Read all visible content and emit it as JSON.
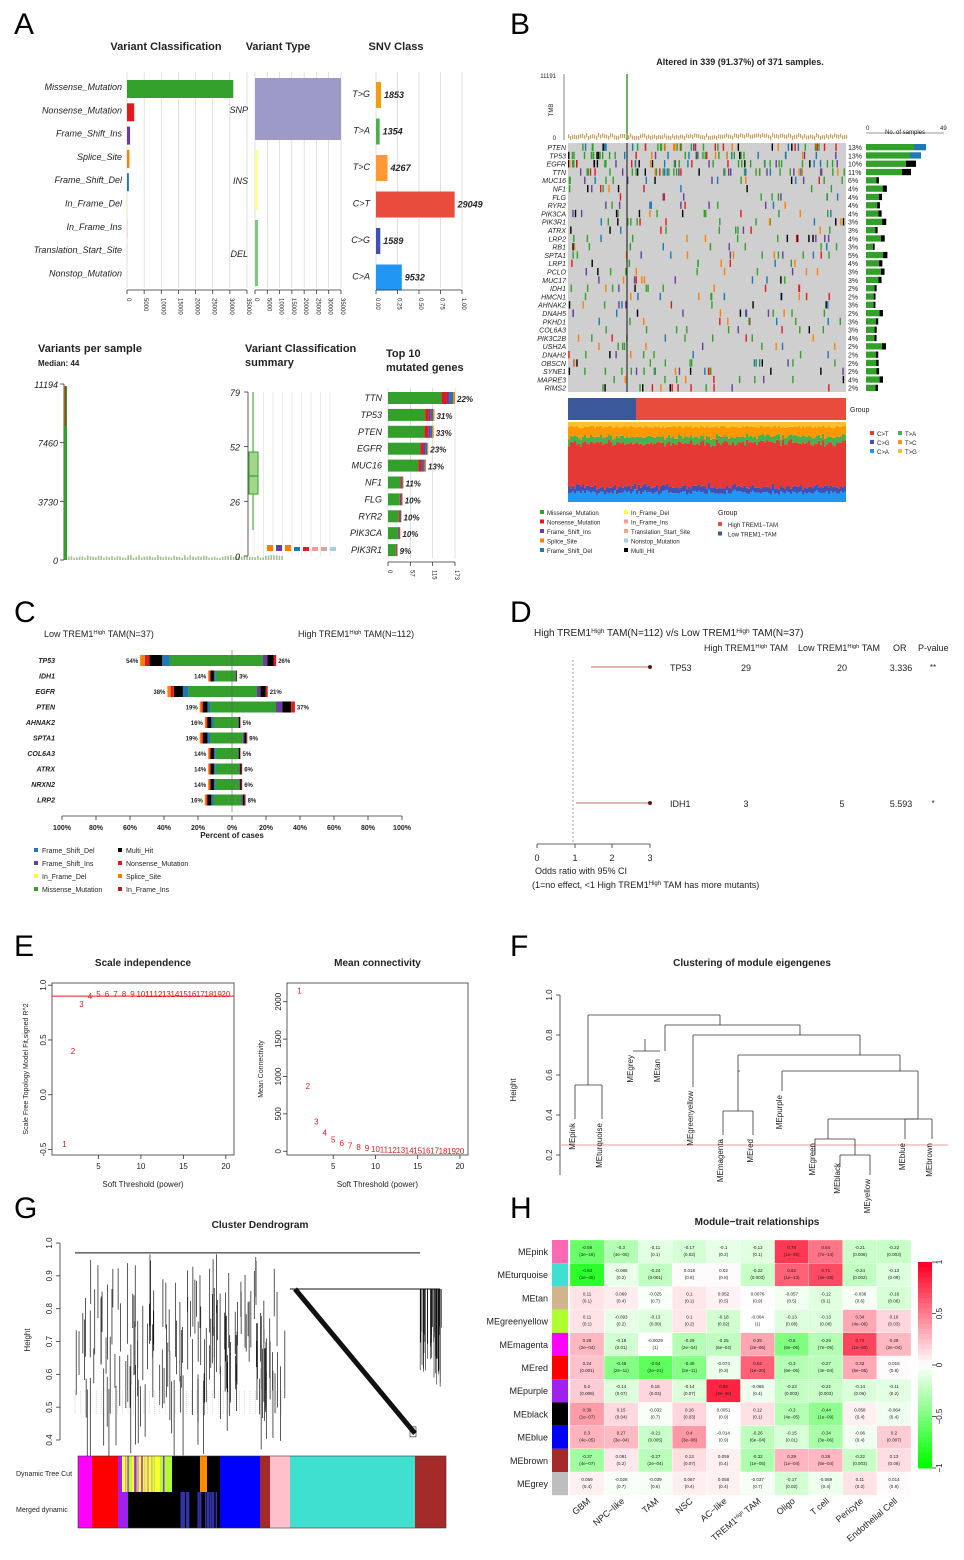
{
  "panels": {
    "A": "A",
    "B": "B",
    "C": "C",
    "D": "D",
    "E": "E",
    "F": "F",
    "G": "G",
    "H": "H"
  },
  "chart_data": [
    {
      "id": "A1",
      "type": "bar",
      "title": "Variant Classification",
      "categories": [
        "Missense_Mutation",
        "Nonsense_Mutation",
        "Frame_Shift_Ins",
        "Splice_Site",
        "Frame_Shift_Del",
        "In_Frame_Del",
        "In_Frame_Ins",
        "Translation_Start_Site",
        "Nonstop_Mutation"
      ],
      "values": [
        31000,
        2100,
        900,
        700,
        550,
        120,
        90,
        40,
        20
      ],
      "colors": [
        "#33a02c",
        "#e31a1c",
        "#6a3d9a",
        "#ff7f00",
        "#1f78b4",
        "#ffff33",
        "#fb9a99",
        "#f4a582",
        "#a6cee3"
      ],
      "xticks": [
        "0",
        "5000",
        "10000",
        "15000",
        "20000",
        "25000",
        "30000",
        "35000"
      ],
      "xlim": [
        0,
        35000
      ]
    },
    {
      "id": "A2",
      "type": "bar",
      "title": "Variant Type",
      "categories": [
        "SNP",
        "INS",
        "DEL"
      ],
      "values": [
        48000,
        300,
        1200
      ],
      "colors": [
        "#9e9ac8",
        "#ffff99",
        "#7fc97f"
      ],
      "xticks": [
        "0",
        "5000",
        "10000",
        "15000",
        "20000",
        "25000",
        "30000",
        "35000"
      ]
    },
    {
      "id": "A3",
      "type": "bar",
      "title": "SNV Class",
      "categories": [
        "T>G",
        "T>A",
        "T>C",
        "C>T",
        "C>G",
        "C>A"
      ],
      "values": [
        1853,
        1354,
        4267,
        29049,
        1589,
        9532
      ],
      "labels": [
        "1853",
        "1354",
        "4267",
        "29049",
        "1589",
        "9532"
      ],
      "colors": [
        "#f39c12",
        "#4daf4a",
        "#ff9933",
        "#e74c3c",
        "#3f51b5",
        "#2196f3"
      ],
      "xticks": [
        "0.00",
        "0.25",
        "0.50",
        "0.75",
        "1.00"
      ]
    },
    {
      "id": "A4",
      "type": "bar",
      "title": "Variants per sample",
      "subtitle": "Median: 44",
      "yticks": [
        "0",
        "3730",
        "7460",
        "11194"
      ],
      "ylim": [
        0,
        11194
      ]
    },
    {
      "id": "A5",
      "type": "box",
      "title": "Variant Classification summary",
      "yticks": [
        "0",
        "26",
        "52",
        "79"
      ]
    },
    {
      "id": "A6",
      "type": "bar",
      "title": "Top 10 mutated genes",
      "categories": [
        "TTN",
        "TP53",
        "PTEN",
        "EGFR",
        "MUC16",
        "NF1",
        "FLG",
        "RYR2",
        "PIK3CA",
        "PIK3R1"
      ],
      "values": [
        173,
        120,
        118,
        104,
        98,
        40,
        38,
        35,
        32,
        25
      ],
      "labels": [
        "22%",
        "31%",
        "33%",
        "23%",
        "13%",
        "11%",
        "10%",
        "10%",
        "10%",
        "9%"
      ],
      "xticks": [
        "0",
        "57",
        "115",
        "173"
      ]
    },
    {
      "id": "B",
      "type": "heatmap",
      "title": "Altered in 339 (91.37%) of 371 samples.",
      "tmb_label": "TMB",
      "tmb_max": "11191",
      "tmb_min": "0",
      "axis_top": [
        "0",
        "No. of samples",
        "49"
      ],
      "genes": [
        "PTEN",
        "TP53",
        "EGFR",
        "TTN",
        "MUC16",
        "NF1",
        "FLG",
        "RYR2",
        "PIK3CA",
        "PIK3R1",
        "ATRX",
        "LRP2",
        "RB1",
        "SPTA1",
        "LRP1",
        "PCLO",
        "MUC17",
        "IDH1",
        "HMCN1",
        "AHNAK2",
        "DNAH5",
        "PKHD1",
        "COL6A3",
        "PIK3C2B",
        "USH2A",
        "DNAH2",
        "OBSCN",
        "SYNE1",
        "MAPRE3",
        "RIMS2"
      ],
      "pcts": [
        "13%",
        "13%",
        "10%",
        "11%",
        "6%",
        "4%",
        "4%",
        "4%",
        "4%",
        "3%",
        "3%",
        "4%",
        "3%",
        "5%",
        "4%",
        "3%",
        "3%",
        "2%",
        "2%",
        "3%",
        "2%",
        "3%",
        "3%",
        "4%",
        "2%",
        "2%",
        "2%",
        "2%",
        "4%",
        "2%"
      ],
      "group_label": "Group",
      "snv_legend": [
        "C>T",
        "T>A",
        "C>G",
        "T>C",
        "C>A",
        "T>G"
      ],
      "legend": [
        "Missense_Mutation",
        "Nonsense_Mutation",
        "Frame_Shift_Ins",
        "Splice_Site",
        "Frame_Shift_Del",
        "In_Frame_Del",
        "In_Frame_Ins",
        "Translation_Start_Site",
        "Nonstop_Mutation",
        "Multi_Hit"
      ],
      "group_legend_title": "Group",
      "group_legend": [
        "High TREM1−TAM",
        "Low TREM1−TAM"
      ]
    },
    {
      "id": "C",
      "type": "bar",
      "left_title": "Low TREM1",
      "right_title": "High TREM1",
      "title_sup": "High",
      "left_n": " TAM(N=37)",
      "right_n": " TAM(N=112)",
      "genes": [
        "TP53",
        "IDH1",
        "EGFR",
        "PTEN",
        "AHNAK2",
        "SPTA1",
        "COL6A3",
        "ATRX",
        "NRXN2",
        "LRP2"
      ],
      "left": [
        54,
        14,
        38,
        19,
        16,
        19,
        14,
        14,
        14,
        16
      ],
      "right": [
        26,
        3,
        21,
        37,
        5,
        9,
        5,
        6,
        6,
        8
      ],
      "left_labels": [
        "54%",
        "14%",
        "38%",
        "19%",
        "16%",
        "19%",
        "14%",
        "14%",
        "14%",
        "16%"
      ],
      "right_labels": [
        "26%",
        "3%",
        "21%",
        "37%",
        "5%",
        "9%",
        "5%",
        "6%",
        "6%",
        "8%"
      ],
      "xticks": [
        "100%",
        "80%",
        "60%",
        "40%",
        "20%",
        "0%",
        "20%",
        "40%",
        "60%",
        "80%",
        "100%"
      ],
      "xlabel": "Percent of cases",
      "legend": [
        "Frame_Shift_Del",
        "Multi_Hit",
        "Frame_Shift_Ins",
        "Nonsense_Mutation",
        "In_Frame_Del",
        "Splice_Site",
        "Missense_Mutation",
        "In_Frame_Ins"
      ]
    },
    {
      "id": "D",
      "type": "forest",
      "title_a": "High TREM1",
      "title_b": " TAM(N=112) v/s Low TREM1",
      "title_c": " TAM(N=37)",
      "sup": "High",
      "col_headers": [
        "High TREM1",
        "High",
        " TAM",
        "Low TREM1",
        "High",
        " TAM",
        "OR",
        "P-value"
      ],
      "rows": [
        {
          "gene": "TP53",
          "high": "29",
          "low": "20",
          "or": "3.336",
          "p": "**"
        },
        {
          "gene": "IDH1",
          "high": "3",
          "low": "5",
          "or": "5.593",
          "p": "*"
        }
      ],
      "xticks": [
        "0",
        "1",
        "2",
        "3"
      ],
      "xlabel1": "Odds ratio with 95% CI",
      "xlabel2": "(1=no effect, <1 High TREM1",
      "xlabel2b": " TAM has more mutants)"
    },
    {
      "id": "E1",
      "type": "scatter",
      "title": "Scale independence",
      "xlabel": "Soft Threshold (power)",
      "ylabel": "Scale Free Topology Model Fit,signed R^2",
      "x": [
        1,
        2,
        3,
        4,
        5,
        6,
        7,
        8,
        9,
        10,
        11,
        12,
        13,
        14,
        15,
        16,
        17,
        18,
        19,
        20
      ],
      "y": [
        -0.45,
        0.4,
        0.83,
        0.9,
        0.92,
        0.92,
        0.92,
        0.92,
        0.92,
        0.92,
        0.92,
        0.92,
        0.92,
        0.92,
        0.92,
        0.92,
        0.92,
        0.92,
        0.92,
        0.92
      ],
      "xticks": [
        "5",
        "10",
        "15",
        "20"
      ],
      "yticks": [
        "-0.5",
        "0.0",
        "0.5",
        "1.0"
      ]
    },
    {
      "id": "E2",
      "type": "scatter",
      "title": "Mean connectivity",
      "xlabel": "Soft Threshold (power)",
      "ylabel": "Mean Connectivity",
      "x": [
        1,
        2,
        3,
        4,
        5,
        6,
        7,
        8,
        9,
        10,
        11,
        12,
        13,
        14,
        15,
        16,
        17,
        18,
        19,
        20
      ],
      "y": [
        2150,
        870,
        400,
        250,
        160,
        110,
        80,
        60,
        45,
        30,
        25,
        20,
        16,
        12,
        10,
        8,
        7,
        6,
        5,
        4
      ],
      "xticks": [
        "5",
        "10",
        "15",
        "20"
      ],
      "yticks": [
        "0",
        "500",
        "1000",
        "1500",
        "2000"
      ]
    },
    {
      "id": "F",
      "type": "dendrogram",
      "title": "Clustering of module eigengenes",
      "ylabel": "Height",
      "leaves": [
        "MEpink",
        "MEturquoise",
        "MEgrey",
        "MEtan",
        "MEgreenyellow",
        "MEmagenta",
        "MEred",
        "MEpurple",
        "MEgreen",
        "MEblack",
        "MEyellow",
        "MEblue",
        "MEbrown"
      ],
      "yticks": [
        "0.2",
        "0.4",
        "0.6",
        "0.8",
        "1.0"
      ]
    },
    {
      "id": "G",
      "type": "dendrogram",
      "title": "Cluster Dendrogram",
      "ylabel": "Height",
      "yticks": [
        "0.4",
        "0.5",
        "0.6",
        "0.7",
        "0.8",
        "0.9",
        "1.0"
      ],
      "row_labels": [
        "Dynamic Tree Cut",
        "Merged dynamic"
      ]
    },
    {
      "id": "H",
      "type": "heatmap",
      "title": "Module−trait relationships",
      "rows": [
        "MEpink",
        "MEturquoise",
        "MEtan",
        "MEgreenyellow",
        "MEmagenta",
        "MEred",
        "MEpurple",
        "MEblack",
        "MEblue",
        "MEbrown",
        "MEgrey"
      ],
      "row_colors": [
        "#ff69b4",
        "#40e0d0",
        "#d2b48c",
        "#adff2f",
        "#ff00ff",
        "#ff0000",
        "#a020f0",
        "#000000",
        "#0000ff",
        "#a52a2a",
        "#bebebe"
      ],
      "cols": [
        "GBM",
        "NPC−like",
        "TAM",
        "NSC",
        "AC−like",
        "TREM1",
        "Oligo",
        "T cell",
        "Pericyte",
        "Endothelial Cell"
      ],
      "col_sup": "High",
      "col_suffix": " TAM",
      "values": [
        [
          -0.59,
          -0.3,
          -0.11,
          -0.17,
          -0.1,
          -0.12,
          0.78,
          0.54,
          -0.21,
          -0.22
        ],
        [
          -0.83,
          -0.086,
          -0.24,
          0.018,
          0.02,
          -0.22,
          0.62,
          0.71,
          -0.24,
          -0.13
        ],
        [
          0.11,
          0.069,
          -0.025,
          0.1,
          0.052,
          0.0076,
          -0.057,
          -0.12,
          -0.036,
          -0.16
        ],
        [
          0.11,
          -0.093,
          -0.13,
          0.1,
          -0.18,
          -0.004,
          -0.13,
          -0.13,
          0.34,
          0.16
        ],
        [
          0.28,
          -0.18,
          -0.0029,
          -0.29,
          -0.25,
          0.35,
          -0.5,
          -0.29,
          0.73,
          0.28
        ],
        [
          0.24,
          -0.48,
          -0.64,
          -0.48,
          -0.074,
          0.62,
          -0.3,
          -0.27,
          0.33,
          0.015
        ],
        [
          0.2,
          -0.14,
          0.16,
          -0.14,
          0.86,
          -0.065,
          -0.23,
          -0.22,
          -0.14,
          -0.11
        ],
        [
          0.39,
          0.15,
          -0.032,
          0.16,
          0.0051,
          0.12,
          -0.3,
          -0.44,
          0.058,
          -0.064
        ],
        [
          0.3,
          0.27,
          -0.21,
          0.4,
          -0.014,
          -0.26,
          -0.15,
          -0.34,
          -0.06,
          0.2
        ],
        [
          -0.37,
          0.091,
          -0.27,
          0.13,
          0.059,
          -0.32,
          0.29,
          0.28,
          -0.22,
          0.13
        ],
        [
          0.059,
          -0.026,
          -0.039,
          0.067,
          0.058,
          -0.037,
          -0.17,
          -0.069,
          0.11,
          0.014
        ]
      ],
      "pvals": [
        [
          "(3e−18)",
          "(4e−05)",
          "(0.1)",
          "(0.02)",
          "(0.2)",
          "(0.1)",
          "(1e−36)",
          "(7e−14)",
          "(0.006)",
          "(0.003)"
        ],
        [
          "(1e−45)",
          "(0.2)",
          "(0.001)",
          "(0.8)",
          "(0.8)",
          "(0.003)",
          "(1e−13)",
          "(4e−28)",
          "(0.002)",
          "(0.09)"
        ],
        [
          "(0.1)",
          "(0.4)",
          "(0.7)",
          "(0.1)",
          "(0.5)",
          "(0.9)",
          "(0.5)",
          "(0.1)",
          "(0.6)",
          "(0.06)"
        ],
        [
          "(0.1)",
          "(0.2)",
          "(0.09)",
          "(0.2)",
          "(0.02)",
          "(1)",
          "(0.08)",
          "(0.08)",
          "(4e−06)",
          "(0.03)"
        ],
        [
          "(2e−04)",
          "(0.01)",
          "(1)",
          "(2e−04)",
          "(6e−04)",
          "(2e−06)",
          "(6e−05)",
          "(7e−05)",
          "(1e−30)",
          "(2e−04)"
        ],
        [
          "(0.001)",
          "(2e−11)",
          "(2e−21)",
          "(2e−11)",
          "(0.3)",
          "(1e−20)",
          "(6e−05)",
          "(4e−04)",
          "(6e−05)",
          "(0.8)"
        ],
        [
          "(0.009)",
          "(0.07)",
          "(0.03)",
          "(0.07)",
          "(3e−36)",
          "(0.4)",
          "(0.003)",
          "(0.003)",
          "(0.06)",
          "(0.2)"
        ],
        [
          "(1e−07)",
          "(0.04)",
          "(0.7)",
          "(0.03)",
          "(0.9)",
          "(0.1)",
          "(4e−05)",
          "(1e−09)",
          "(0.4)",
          "(0.4)"
        ],
        [
          "(4e−05)",
          "(3e−04)",
          "(0.005)",
          "(3e−08)",
          "(0.9)",
          "(6e−04)",
          "(0.01)",
          "(3e−06)",
          "(0.4)",
          "(0.007)"
        ],
        [
          "(4e−07)",
          "(0.2)",
          "(2e−04)",
          "(0.07)",
          "(0.4)",
          "(1e−05)",
          "(1e−04)",
          "(5e−04)",
          "(0.003)",
          "(0.08)"
        ],
        [
          "(0.4)",
          "(0.7)",
          "(0.6)",
          "(0.4)",
          "(0.4)",
          "(0.7)",
          "(0.02)",
          "(0.4)",
          "(0.2)",
          "(0.9)"
        ]
      ],
      "scale_ticks": [
        "1",
        "0.5",
        "0",
        "−0.5",
        "−1"
      ]
    }
  ]
}
